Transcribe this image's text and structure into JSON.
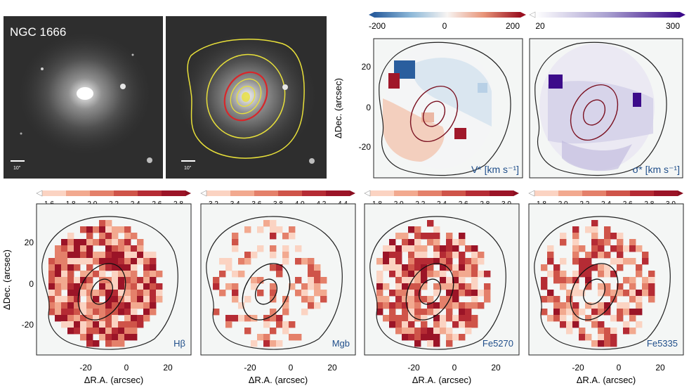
{
  "galaxy_label": "NGC 1666",
  "scalebar_label": "10\"",
  "colors": {
    "panel_bg": "#f4f6f5",
    "contour_yellow": "#e8e03a",
    "contour_red": "#d8262a",
    "ellipse_dark": "#7a1020",
    "label_blue": "#1f4e8a"
  },
  "kinematics": [
    {
      "id": "velocity",
      "label": "V* [km s⁻¹]",
      "colormap": "diverging",
      "cbar_ticks": [
        "-200",
        "0",
        "200"
      ],
      "cbar_range": [
        -200,
        200
      ],
      "has_ylabel": true
    },
    {
      "id": "dispersion",
      "label": "σ* [km s⁻¹]",
      "colormap": "purple",
      "cbar_ticks": [
        "20",
        "300"
      ],
      "cbar_range": [
        20,
        300
      ],
      "has_ylabel": false
    }
  ],
  "indices": [
    {
      "id": "hbeta",
      "label": "Hβ",
      "cbar_ticks": [
        "1.6",
        "1.8",
        "2.0",
        "2.2",
        "2.4",
        "2.6",
        "2.8"
      ],
      "density": 0.9
    },
    {
      "id": "mgb",
      "label": "Mgb",
      "cbar_ticks": [
        "3.2",
        "3.4",
        "3.6",
        "3.8",
        "4.0",
        "4.2",
        "4.4"
      ],
      "density": 0.35
    },
    {
      "id": "fe5270",
      "label": "Fe5270",
      "cbar_ticks": [
        "1.8",
        "2.0",
        "2.2",
        "2.4",
        "2.6",
        "2.8",
        "3.0"
      ],
      "density": 0.75
    },
    {
      "id": "fe5335",
      "label": "Fe5335",
      "cbar_ticks": [
        "1.8",
        "2.0",
        "2.2",
        "2.4",
        "2.6",
        "2.8",
        "3.0"
      ],
      "density": 0.55
    }
  ],
  "axes": {
    "ylabel": "ΔDec. (arcsec)",
    "xlabel": "ΔR.A. (arcsec)",
    "yticks": [
      "20",
      "0",
      "-20"
    ],
    "xticks": [
      "-20",
      "0",
      "20"
    ]
  }
}
